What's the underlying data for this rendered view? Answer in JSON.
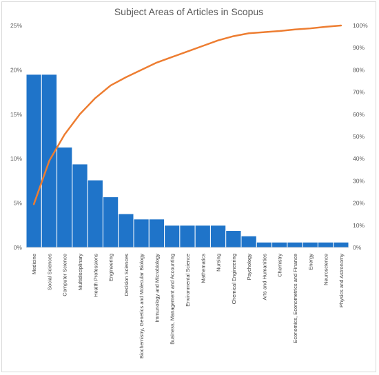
{
  "chart_data": {
    "type": "bar",
    "title": "Subject Areas of Articles in Scopus",
    "xlabel": "",
    "ylabel": "",
    "categories": [
      "Medicine",
      "Social Sciences",
      "Computer Science",
      "Multidisciplinary",
      "Health Professions",
      "Engineering",
      "Decision Sciences",
      "Biochemistry, Genetics and Molecular Biology",
      "Immunology and Microbiology",
      "Business, Management and Accounting",
      "Environmental Science",
      "Mathematics",
      "Nursing",
      "Chemical Engineering",
      "Psychology",
      "Arts and Humanities",
      "Chemistry",
      "Economics, Econometrics and Finance",
      "Energy",
      "Neuroscience",
      "Physics and Astronomy"
    ],
    "series": [
      {
        "type": "bar",
        "axis": "left",
        "values": [
          19.5,
          19.5,
          11.3,
          9.4,
          7.6,
          5.7,
          3.8,
          3.2,
          3.2,
          2.5,
          2.5,
          2.5,
          2.5,
          1.9,
          1.3,
          0.6,
          0.6,
          0.6,
          0.6,
          0.6,
          0.6
        ]
      },
      {
        "type": "line",
        "axis": "right",
        "values": [
          19.5,
          39.0,
          50.9,
          60.1,
          67.3,
          73.0,
          76.7,
          80.0,
          83.3,
          85.8,
          88.3,
          90.8,
          93.3,
          95.2,
          96.5,
          97.0,
          97.5,
          98.2,
          98.7,
          99.4,
          100.0
        ]
      }
    ],
    "y_left": {
      "ylim": [
        0,
        25
      ],
      "ticks": [
        "0%",
        "5%",
        "10%",
        "15%",
        "20%",
        "25%"
      ]
    },
    "y_right": {
      "ylim": [
        0,
        100
      ],
      "ticks": [
        "0%",
        "10%",
        "20%",
        "30%",
        "40%",
        "50%",
        "60%",
        "70%",
        "80%",
        "90%",
        "100%"
      ]
    },
    "grid": false,
    "legend": "none"
  },
  "colors": {
    "bar": "#1f74c9",
    "line": "#ed7d31",
    "axis": "#d9d9d9",
    "text": "#595959"
  }
}
